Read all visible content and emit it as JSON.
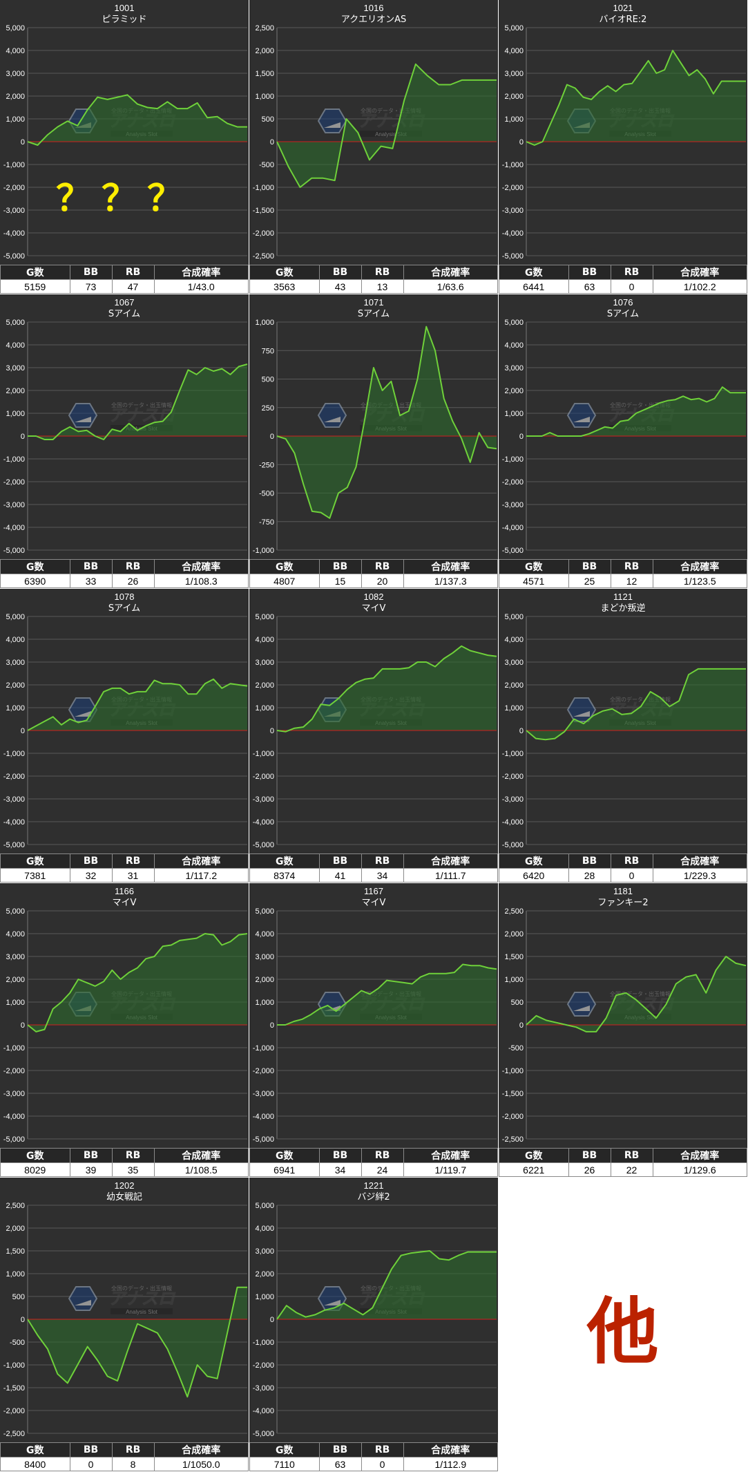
{
  "colors": {
    "panel_bg": "#2f2f2f",
    "grid": "#5a5a5a",
    "line": "#6fd13a",
    "fill": "#2d6b2d",
    "zero": "#d21e1e",
    "question": "#ffee00",
    "other": "#bb2200"
  },
  "stats_headers": [
    "G数",
    "BB",
    "RB",
    "合成確率"
  ],
  "overlay_question": "？？？",
  "watermark": {
    "top": "全国のデータ・出玉情報",
    "main": "アナスロ",
    "sub": "Analysis Slot"
  },
  "other_label": "他",
  "chart_data": [
    {
      "type": "area",
      "id": "1001",
      "title": "1001",
      "subtitle": "ピラミッド",
      "ylim": [
        -5000,
        5000
      ],
      "yticks": [
        5000,
        4000,
        3000,
        2000,
        1000,
        0,
        -1000,
        -2000,
        -3000,
        -4000,
        -5000
      ],
      "values": [
        0,
        -150,
        300,
        650,
        900,
        700,
        1400,
        1950,
        1850,
        1950,
        2050,
        1650,
        1500,
        1450,
        1750,
        1450,
        1450,
        1700,
        1050,
        1100,
        800,
        650,
        650
      ],
      "stats": [
        "5159",
        "73",
        "47",
        "1/43.0"
      ]
    },
    {
      "type": "area",
      "id": "1016",
      "title": "1016",
      "subtitle": "アクエリオンAS",
      "ylim": [
        -2500,
        2500
      ],
      "yticks": [
        2500,
        2000,
        1500,
        1000,
        500,
        0,
        -500,
        -1000,
        -1500,
        -2000,
        -2500
      ],
      "values": [
        0,
        -550,
        -1000,
        -800,
        -800,
        -850,
        500,
        200,
        -400,
        -100,
        -150,
        900,
        1700,
        1450,
        1250,
        1250,
        1350,
        1350,
        1350,
        1350
      ],
      "stats": [
        "3563",
        "43",
        "13",
        "1/63.6"
      ]
    },
    {
      "type": "area",
      "id": "1021",
      "title": "1021",
      "subtitle": "バイオRE:2",
      "ylim": [
        -5000,
        5000
      ],
      "yticks": [
        5000,
        4000,
        3000,
        2000,
        1000,
        0,
        -1000,
        -2000,
        -3000,
        -4000,
        -5000
      ],
      "values": [
        0,
        -150,
        0,
        800,
        1600,
        2500,
        2350,
        1950,
        1850,
        2200,
        2450,
        2200,
        2500,
        2550,
        3050,
        3550,
        3000,
        3150,
        4000,
        3450,
        2900,
        3150,
        2750,
        2100,
        2650,
        2650,
        2650,
        2650
      ],
      "stats": [
        "6441",
        "63",
        "0",
        "1/102.2"
      ]
    },
    {
      "type": "area",
      "id": "1067",
      "title": "1067",
      "subtitle": "Sアイム",
      "ylim": [
        -5000,
        5000
      ],
      "yticks": [
        5000,
        4000,
        3000,
        2000,
        1000,
        0,
        -1000,
        -2000,
        -3000,
        -4000,
        -5000
      ],
      "values": [
        0,
        0,
        -150,
        -150,
        200,
        400,
        200,
        250,
        0,
        -150,
        300,
        200,
        550,
        250,
        450,
        600,
        650,
        1050,
        2000,
        2900,
        2700,
        3000,
        2850,
        2950,
        2700,
        3050,
        3150
      ],
      "stats": [
        "6390",
        "33",
        "26",
        "1/108.3"
      ]
    },
    {
      "type": "area",
      "id": "1071",
      "title": "1071",
      "subtitle": "Sアイム",
      "ylim": [
        -1000,
        1000
      ],
      "yticks": [
        1000,
        750,
        500,
        250,
        0,
        -250,
        -500,
        -750,
        -1000
      ],
      "values": [
        0,
        -25,
        -150,
        -420,
        -660,
        -670,
        -720,
        -500,
        -450,
        -270,
        150,
        600,
        400,
        480,
        180,
        220,
        500,
        960,
        750,
        330,
        130,
        -20,
        -230,
        30,
        -100,
        -110
      ],
      "stats": [
        "4807",
        "15",
        "20",
        "1/137.3"
      ]
    },
    {
      "type": "area",
      "id": "1076",
      "title": "1076",
      "subtitle": "Sアイム",
      "ylim": [
        -5000,
        5000
      ],
      "yticks": [
        5000,
        4000,
        3000,
        2000,
        1000,
        0,
        -1000,
        -2000,
        -3000,
        -4000,
        -5000
      ],
      "values": [
        0,
        0,
        0,
        150,
        0,
        0,
        0,
        0,
        100,
        250,
        400,
        350,
        650,
        700,
        1000,
        1150,
        1300,
        1450,
        1550,
        1600,
        1750,
        1600,
        1650,
        1500,
        1650,
        2150,
        1900,
        1900,
        1900
      ],
      "stats": [
        "4571",
        "25",
        "12",
        "1/123.5"
      ]
    },
    {
      "type": "area",
      "id": "1078",
      "title": "1078",
      "subtitle": "Sアイム",
      "ylim": [
        -5000,
        5000
      ],
      "yticks": [
        5000,
        4000,
        3000,
        2000,
        1000,
        0,
        -1000,
        -2000,
        -3000,
        -4000,
        -5000
      ],
      "values": [
        0,
        200,
        400,
        600,
        250,
        500,
        350,
        450,
        1050,
        1700,
        1850,
        1850,
        1600,
        1700,
        1700,
        2200,
        2050,
        2050,
        2000,
        1600,
        1600,
        2050,
        2250,
        1850,
        2050,
        2000,
        1950
      ],
      "stats": [
        "7381",
        "32",
        "31",
        "1/117.2"
      ]
    },
    {
      "type": "area",
      "id": "1082",
      "title": "1082",
      "subtitle": "マイV",
      "ylim": [
        -5000,
        5000
      ],
      "yticks": [
        5000,
        4000,
        3000,
        2000,
        1000,
        0,
        -1000,
        -2000,
        -3000,
        -4000,
        -5000
      ],
      "values": [
        0,
        -50,
        100,
        150,
        500,
        1150,
        1100,
        1400,
        1800,
        2100,
        2250,
        2300,
        2700,
        2700,
        2700,
        2750,
        3000,
        3000,
        2800,
        3150,
        3400,
        3700,
        3500,
        3400,
        3300,
        3250
      ],
      "stats": [
        "8374",
        "41",
        "34",
        "1/111.7"
      ]
    },
    {
      "type": "area",
      "id": "1121",
      "title": "1121",
      "subtitle": "まどか叛逆",
      "ylim": [
        -5000,
        5000
      ],
      "yticks": [
        5000,
        4000,
        3000,
        2000,
        1000,
        0,
        -1000,
        -2000,
        -3000,
        -4000,
        -5000
      ],
      "values": [
        0,
        -350,
        -400,
        -350,
        -50,
        500,
        300,
        650,
        850,
        950,
        700,
        750,
        1050,
        1700,
        1450,
        1050,
        1300,
        2450,
        2700,
        2700,
        2700,
        2700,
        2700,
        2700
      ],
      "stats": [
        "6420",
        "28",
        "0",
        "1/229.3"
      ]
    },
    {
      "type": "area",
      "id": "1166",
      "title": "1166",
      "subtitle": "マイV",
      "ylim": [
        -5000,
        5000
      ],
      "yticks": [
        5000,
        4000,
        3000,
        2000,
        1000,
        0,
        -1000,
        -2000,
        -3000,
        -4000,
        -5000
      ],
      "values": [
        0,
        -300,
        -200,
        700,
        1000,
        1400,
        2000,
        1850,
        1700,
        1900,
        2400,
        2000,
        2300,
        2500,
        2900,
        3000,
        3450,
        3500,
        3700,
        3750,
        3800,
        4000,
        3950,
        3500,
        3650,
        3950,
        4000
      ],
      "stats": [
        "8029",
        "39",
        "35",
        "1/108.5"
      ]
    },
    {
      "type": "area",
      "id": "1167",
      "title": "1167",
      "subtitle": "マイV",
      "ylim": [
        -5000,
        5000
      ],
      "yticks": [
        5000,
        4000,
        3000,
        2000,
        1000,
        0,
        -1000,
        -2000,
        -3000,
        -4000,
        -5000
      ],
      "values": [
        0,
        0,
        150,
        250,
        450,
        700,
        850,
        600,
        900,
        1200,
        1500,
        1350,
        1600,
        1950,
        1900,
        1850,
        1800,
        2100,
        2250,
        2250,
        2250,
        2300,
        2650,
        2600,
        2600,
        2500,
        2450
      ],
      "stats": [
        "6941",
        "34",
        "24",
        "1/119.7"
      ]
    },
    {
      "type": "area",
      "id": "1181",
      "title": "1181",
      "subtitle": "ファンキー2",
      "ylim": [
        -2500,
        2500
      ],
      "yticks": [
        2500,
        2000,
        1500,
        1000,
        500,
        0,
        -500,
        -1000,
        -1500,
        -2000,
        -2500
      ],
      "values": [
        0,
        200,
        100,
        50,
        0,
        -50,
        -150,
        -150,
        150,
        650,
        700,
        550,
        350,
        150,
        450,
        900,
        1050,
        1100,
        700,
        1200,
        1500,
        1350,
        1300
      ],
      "stats": [
        "6221",
        "26",
        "22",
        "1/129.6"
      ]
    },
    {
      "type": "area",
      "id": "1202",
      "title": "1202",
      "subtitle": "幼女戦記",
      "ylim": [
        -2500,
        2500
      ],
      "yticks": [
        2500,
        2000,
        1500,
        1000,
        500,
        0,
        -500,
        -1000,
        -1500,
        -2000,
        -2500
      ],
      "values": [
        0,
        -350,
        -650,
        -1200,
        -1400,
        -1000,
        -600,
        -900,
        -1250,
        -1350,
        -700,
        -100,
        -200,
        -300,
        -650,
        -1150,
        -1700,
        -1000,
        -1250,
        -1300,
        -300,
        700,
        700
      ],
      "stats": [
        "8400",
        "0",
        "8",
        "1/1050.0"
      ]
    },
    {
      "type": "area",
      "id": "1221",
      "title": "1221",
      "subtitle": "バジ絆2",
      "ylim": [
        -5000,
        5000
      ],
      "yticks": [
        5000,
        4000,
        3000,
        2000,
        1000,
        0,
        -1000,
        -2000,
        -3000,
        -4000,
        -5000
      ],
      "values": [
        0,
        600,
        300,
        100,
        200,
        400,
        500,
        700,
        450,
        200,
        500,
        1350,
        2200,
        2800,
        2900,
        2950,
        3000,
        2650,
        2600,
        2800,
        2950,
        2950,
        2950,
        2950
      ],
      "stats": [
        "7110",
        "63",
        "0",
        "1/112.9"
      ]
    }
  ]
}
